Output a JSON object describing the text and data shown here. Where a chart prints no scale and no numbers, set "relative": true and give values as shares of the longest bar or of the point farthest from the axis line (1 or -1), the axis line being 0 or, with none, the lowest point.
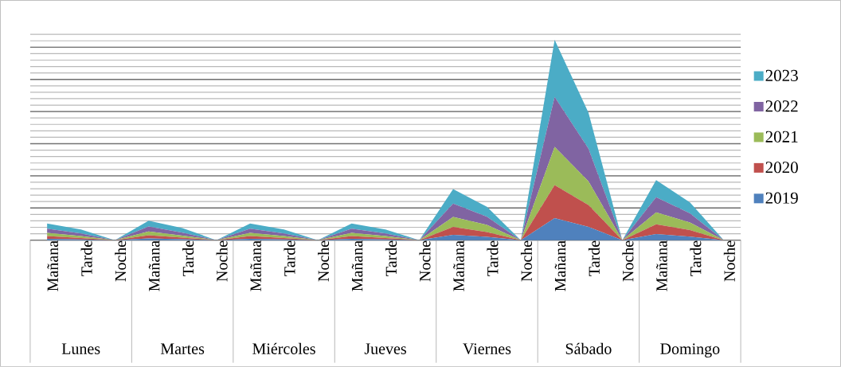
{
  "chart_data": {
    "type": "area",
    "stacked": true,
    "relative": true,
    "grid": true,
    "legend": "right",
    "categories": [
      "Mañana",
      "Tarde",
      "Noche",
      "Mañana",
      "Tarde",
      "Noche",
      "Mañana",
      "Tarde",
      "Noche",
      "Mañana",
      "Tarde",
      "Noche",
      "Mañana",
      "Tarde",
      "Noche",
      "Mañana",
      "Tarde",
      "Noche",
      "Mañana",
      "Tarde",
      "Noche"
    ],
    "annotations": [
      "Lunes",
      "Martes",
      "Miércoles",
      "Jueves",
      "Viernes",
      "Sábado",
      "Domingo"
    ],
    "series": [
      {
        "name": "2019",
        "color": "#4f81bd",
        "values": [
          0.007,
          0.004,
          0,
          0.009,
          0.005,
          0,
          0.007,
          0.004,
          0,
          0.007,
          0.004,
          0,
          0.026,
          0.016,
          0,
          0.11,
          0.066,
          0,
          0.03,
          0.017,
          0
        ]
      },
      {
        "name": "2020",
        "color": "#c0504d",
        "values": [
          0.013,
          0.007,
          0,
          0.015,
          0.008,
          0,
          0.013,
          0.007,
          0,
          0.013,
          0.007,
          0,
          0.04,
          0.024,
          0,
          0.165,
          0.109,
          0,
          0.049,
          0.033,
          0
        ]
      },
      {
        "name": "2021",
        "color": "#9bbb59",
        "values": [
          0.016,
          0.009,
          0,
          0.019,
          0.009,
          0,
          0.016,
          0.009,
          0,
          0.016,
          0.009,
          0,
          0.05,
          0.036,
          0,
          0.19,
          0.119,
          0,
          0.06,
          0.038,
          0
        ]
      },
      {
        "name": "2022",
        "color": "#8064a2",
        "values": [
          0.021,
          0.013,
          0,
          0.025,
          0.015,
          0,
          0.021,
          0.013,
          0,
          0.021,
          0.013,
          0,
          0.066,
          0.041,
          0,
          0.25,
          0.163,
          0,
          0.075,
          0.046,
          0
        ]
      },
      {
        "name": "2023",
        "color": "#4bacc6",
        "values": [
          0.026,
          0.02,
          0,
          0.029,
          0.023,
          0,
          0.026,
          0.02,
          0,
          0.026,
          0.02,
          0,
          0.073,
          0.049,
          0,
          0.285,
          0.179,
          0,
          0.086,
          0.054,
          0
        ]
      }
    ]
  }
}
